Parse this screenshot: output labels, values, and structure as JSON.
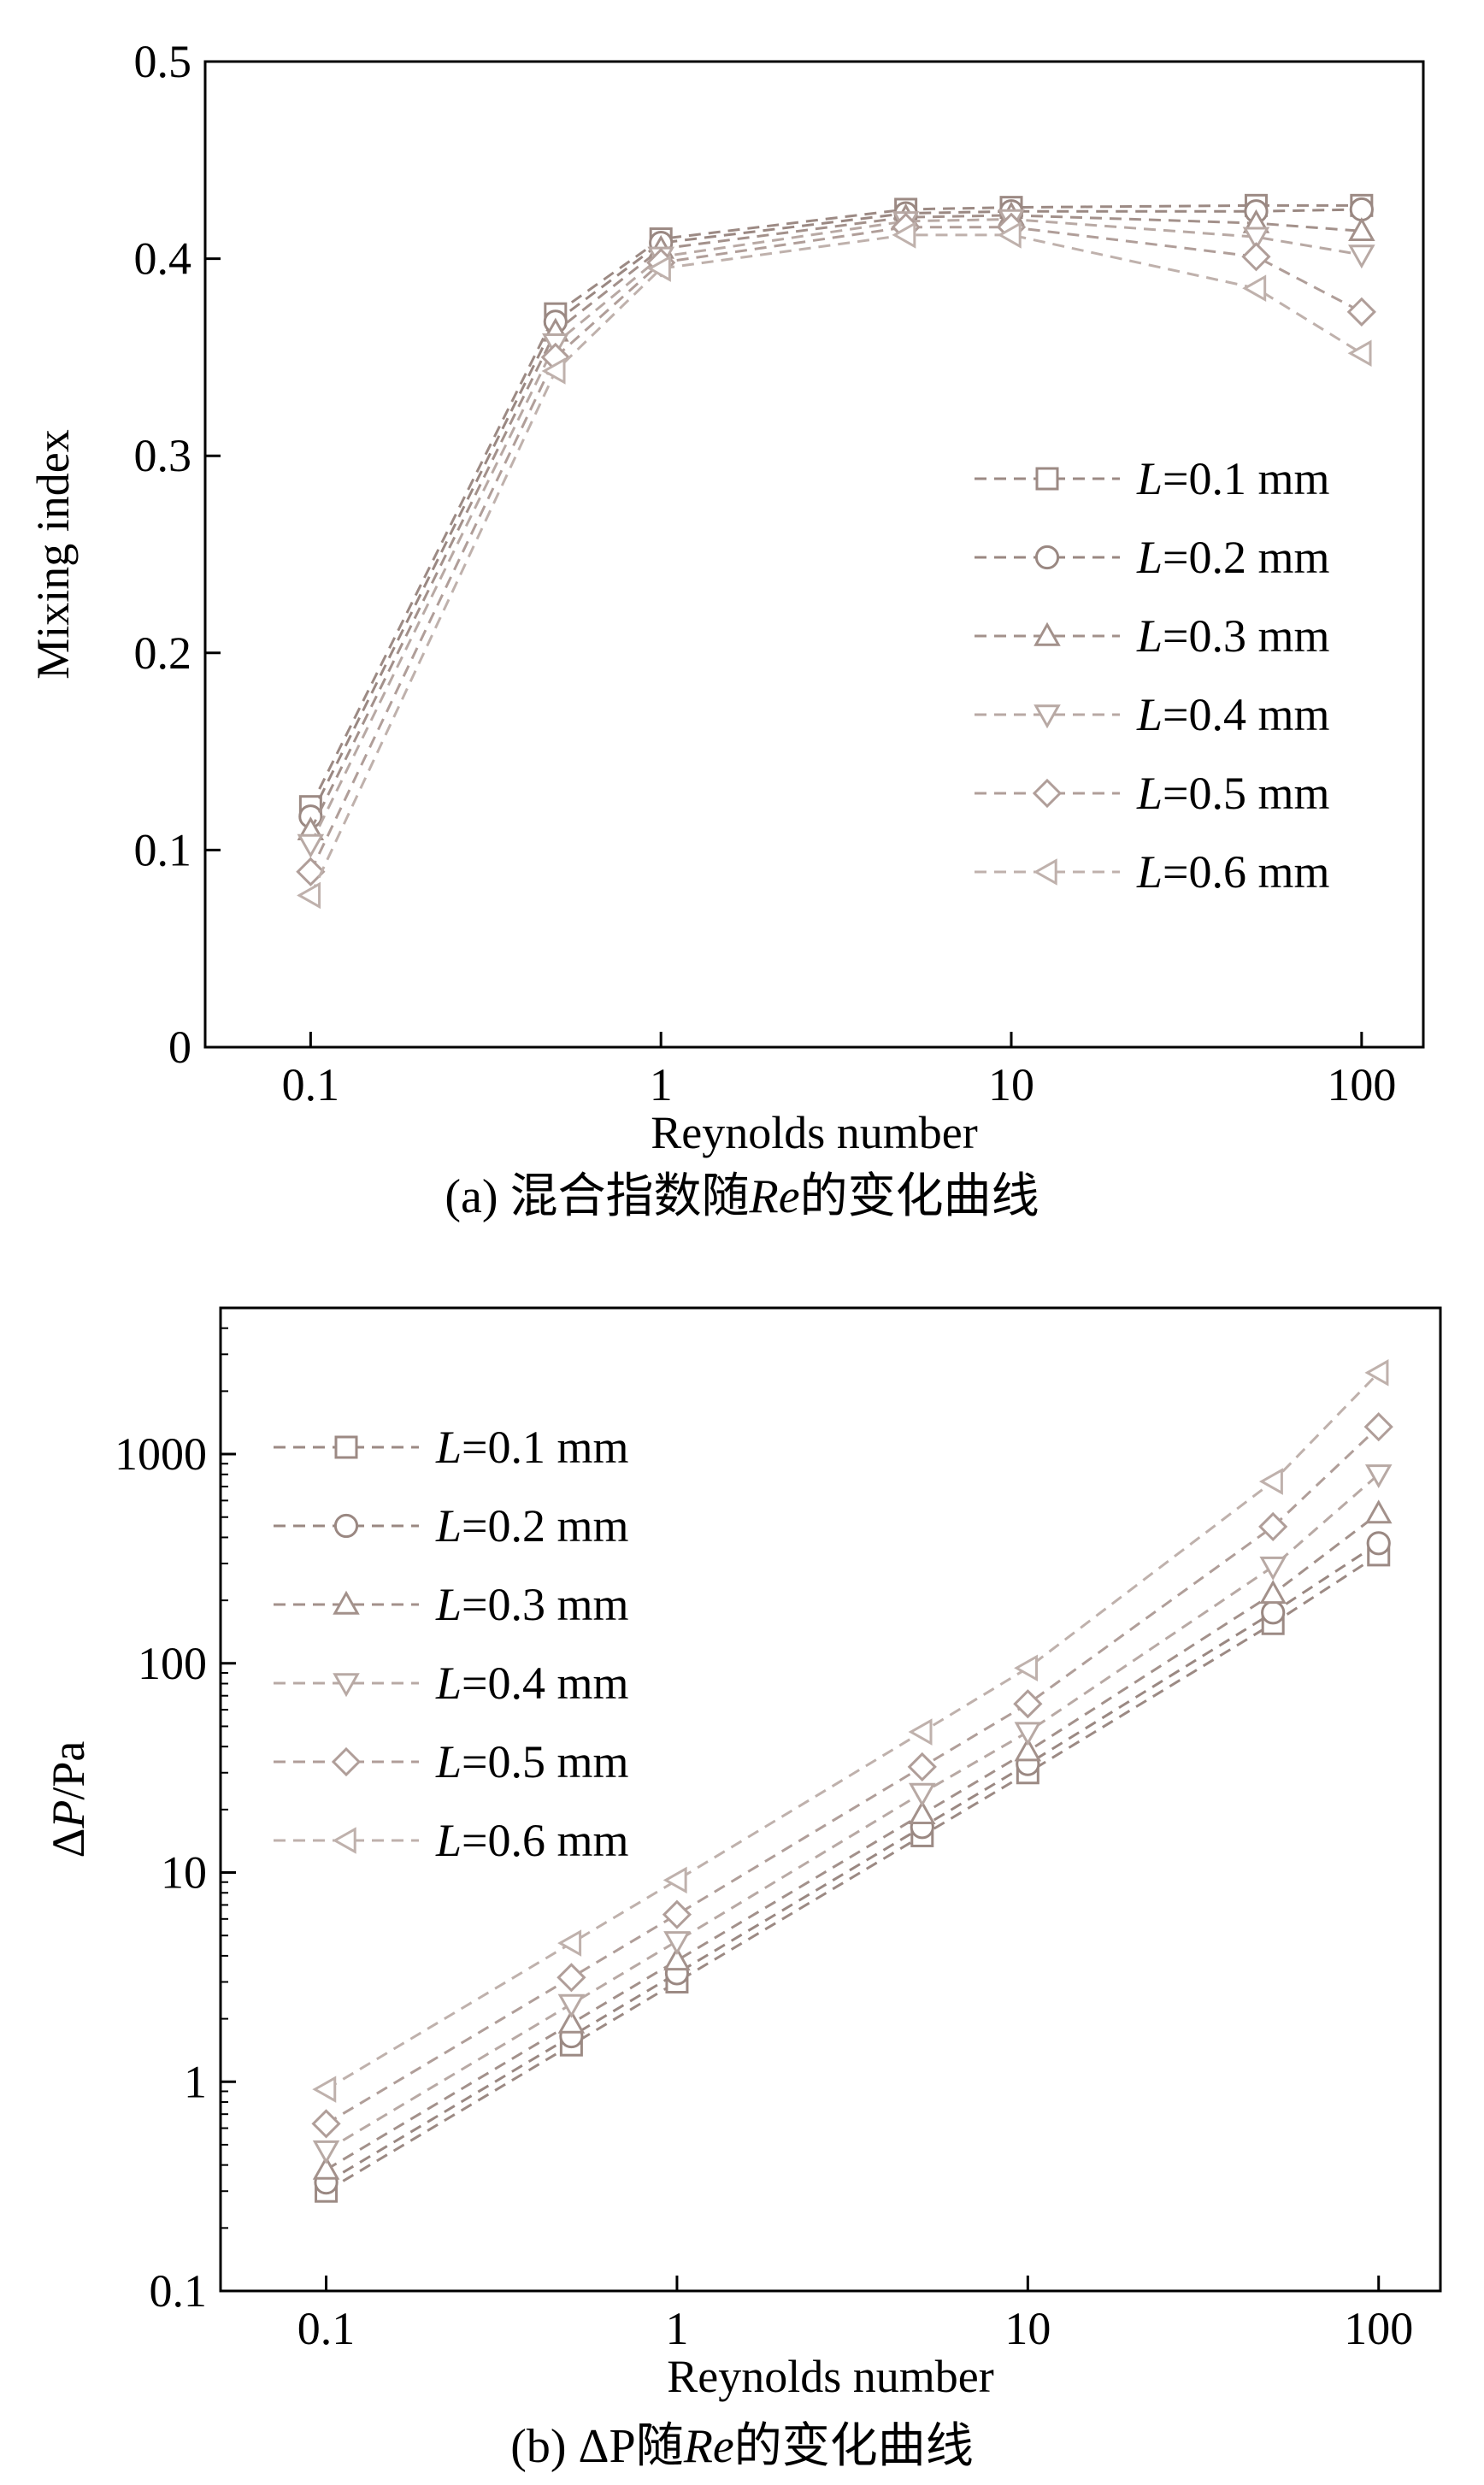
{
  "colors": {
    "series": [
      "#9c8a84",
      "#9a8882",
      "#a3918b",
      "#b8a9a4",
      "#b09e99",
      "#bfb1ac"
    ],
    "axis": "#000000"
  },
  "chart_data": [
    {
      "type": "line",
      "caption": {
        "prefix": "(a) 混合指数随",
        "italic": "Re",
        "suffix": "的变化曲线"
      },
      "xlabel": "Reynolds number",
      "ylabel": "Mixing index",
      "xscale": "log",
      "yscale": "linear",
      "xlim": [
        0.05,
        150
      ],
      "ylim": [
        0,
        0.5
      ],
      "xticks": [
        0.1,
        1,
        10,
        100
      ],
      "xticklabels": [
        "0.1",
        "1",
        "10",
        "100"
      ],
      "yticks": [
        0,
        0.1,
        0.2,
        0.3,
        0.4,
        0.5
      ],
      "yticklabels": [
        "0",
        "0.1",
        "0.2",
        "0.3",
        "0.4",
        "0.5"
      ],
      "legend_position": "center-right",
      "x": [
        0.1,
        0.5,
        1,
        5,
        10,
        50,
        100
      ],
      "series": [
        {
          "name_italic": "L",
          "name_rest": "=0.1 mm",
          "marker": "square",
          "values": [
            0.122,
            0.372,
            0.41,
            0.425,
            0.426,
            0.427,
            0.427
          ]
        },
        {
          "name_italic": "L",
          "name_rest": "=0.2 mm",
          "marker": "circle",
          "values": [
            0.117,
            0.368,
            0.408,
            0.423,
            0.424,
            0.424,
            0.425
          ]
        },
        {
          "name_italic": "L",
          "name_rest": "=0.3 mm",
          "marker": "triangle-up",
          "values": [
            0.11,
            0.363,
            0.405,
            0.421,
            0.422,
            0.418,
            0.414
          ]
        },
        {
          "name_italic": "L",
          "name_rest": "=0.4 mm",
          "marker": "triangle-down",
          "values": [
            0.103,
            0.357,
            0.401,
            0.419,
            0.42,
            0.411,
            0.402
          ]
        },
        {
          "name_italic": "L",
          "name_rest": "=0.5 mm",
          "marker": "diamond",
          "values": [
            0.089,
            0.35,
            0.398,
            0.416,
            0.416,
            0.401,
            0.373
          ]
        },
        {
          "name_italic": "L",
          "name_rest": "=0.6 mm",
          "marker": "triangle-left",
          "values": [
            0.077,
            0.343,
            0.395,
            0.412,
            0.412,
            0.385,
            0.352
          ]
        }
      ]
    },
    {
      "type": "line",
      "caption": {
        "prefix": "(b) ΔP随",
        "italic": "Re",
        "suffix": "的变化曲线"
      },
      "xlabel": "Reynolds number",
      "ylabel_prefix": "Δ",
      "ylabel_italic": "P",
      "ylabel_suffix": "/Pa",
      "xscale": "log",
      "yscale": "log",
      "xlim": [
        0.05,
        150
      ],
      "ylim": [
        0.1,
        5000
      ],
      "xticks": [
        0.1,
        1,
        10,
        100
      ],
      "xticklabels": [
        "0.1",
        "1",
        "10",
        "100"
      ],
      "yticks": [
        0.1,
        1,
        10,
        100,
        1000
      ],
      "yticklabels": [
        "0.1",
        "1",
        "10",
        "100",
        "1000"
      ],
      "legend_position": "top-left",
      "x": [
        0.1,
        0.5,
        1,
        5,
        10,
        50,
        100
      ],
      "series": [
        {
          "name_italic": "L",
          "name_rest": "=0.1 mm",
          "marker": "square",
          "values": [
            0.3,
            1.5,
            3.0,
            15,
            30,
            155,
            330
          ]
        },
        {
          "name_italic": "L",
          "name_rest": "=0.2 mm",
          "marker": "circle",
          "values": [
            0.33,
            1.65,
            3.3,
            16.5,
            33,
            175,
            375
          ]
        },
        {
          "name_italic": "L",
          "name_rest": "=0.3 mm",
          "marker": "triangle-up",
          "values": [
            0.38,
            1.9,
            3.8,
            19,
            38,
            215,
            520
          ]
        },
        {
          "name_italic": "L",
          "name_rest": "=0.4 mm",
          "marker": "triangle-down",
          "values": [
            0.47,
            2.35,
            4.7,
            24,
            47,
            290,
            800
          ]
        },
        {
          "name_italic": "L",
          "name_rest": "=0.5 mm",
          "marker": "diamond",
          "values": [
            0.63,
            3.15,
            6.3,
            32,
            64,
            450,
            1350
          ]
        },
        {
          "name_italic": "L",
          "name_rest": "=0.6 mm",
          "marker": "triangle-left",
          "values": [
            0.92,
            4.6,
            9.2,
            47,
            95,
            740,
            2450
          ]
        }
      ]
    }
  ]
}
